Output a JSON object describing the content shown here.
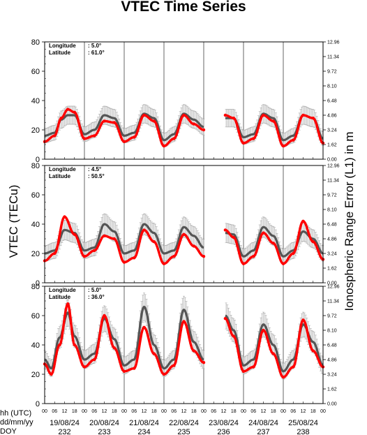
{
  "chart_data": {
    "type": "line",
    "title": "VTEC Time Series",
    "ylabel": "VTEC (TECu)",
    "ylabel_right": "Ionospheric Range Error (L1) in m",
    "ylim": [
      0,
      80
    ],
    "y_ticks": [
      0,
      20,
      40,
      60,
      80
    ],
    "y_right_ticks": [
      "0.00",
      "1.62",
      "3.24",
      "4.86",
      "6.48",
      "8.10",
      "9.72",
      "11.34",
      "12.96"
    ],
    "x_row_labels": [
      "hh (UTC)",
      "dd/mm/yy",
      "DOY"
    ],
    "hour_ticks": [
      "00",
      "06",
      "12",
      "18"
    ],
    "days": [
      {
        "date": "19/08/24",
        "doy": "232"
      },
      {
        "date": "20/08/24",
        "doy": "233"
      },
      {
        "date": "21/08/24",
        "doy": "234"
      },
      {
        "date": "22/08/24",
        "doy": "235"
      },
      {
        "date": "23/08/24",
        "doy": "236"
      },
      {
        "date": "24/08/24",
        "doy": "237"
      },
      {
        "date": "25/08/24",
        "doy": "238"
      }
    ],
    "colors": {
      "measured": "#ff0000",
      "reference": "#555555",
      "error_bar": "#aaaaaa"
    },
    "gap_hours": [
      96,
      109
    ],
    "panels": [
      {
        "longitude_label": "Longitude",
        "longitude_value": ":   5.0°",
        "latitude_label": "Latitude",
        "latitude_value": ": 61.0°",
        "series": [
          {
            "values": [
              [
                0,
                12
              ],
              [
                6,
                16
              ],
              [
                10,
                28
              ],
              [
                14,
                34
              ],
              [
                18,
                32
              ],
              [
                24,
                14
              ],
              [
                30,
                16
              ],
              [
                36,
                26
              ],
              [
                42,
                25
              ],
              [
                48,
                12
              ],
              [
                54,
                15
              ],
              [
                60,
                30
              ],
              [
                66,
                26
              ],
              [
                72,
                9
              ],
              [
                78,
                14
              ],
              [
                84,
                30
              ],
              [
                90,
                24
              ],
              [
                96,
                20
              ],
              [
                109,
                30
              ],
              [
                114,
                28
              ],
              [
                120,
                11
              ],
              [
                126,
                14
              ],
              [
                132,
                30
              ],
              [
                138,
                26
              ],
              [
                144,
                9
              ],
              [
                150,
                13
              ],
              [
                156,
                30
              ],
              [
                162,
                28
              ],
              [
                168,
                11
              ]
            ]
          },
          {
            "values": [
              [
                0,
                16
              ],
              [
                6,
                18
              ],
              [
                10,
                27
              ],
              [
                14,
                30
              ],
              [
                18,
                30
              ],
              [
                24,
                17
              ],
              [
                30,
                20
              ],
              [
                36,
                30
              ],
              [
                42,
                28
              ],
              [
                48,
                16
              ],
              [
                54,
                18
              ],
              [
                60,
                31
              ],
              [
                66,
                28
              ],
              [
                72,
                13
              ],
              [
                78,
                17
              ],
              [
                84,
                31
              ],
              [
                90,
                27
              ],
              [
                96,
                22
              ],
              [
                109,
                28
              ],
              [
                114,
                28
              ],
              [
                120,
                15
              ],
              [
                126,
                17
              ],
              [
                132,
                31
              ],
              [
                138,
                28
              ],
              [
                144,
                13
              ],
              [
                150,
                16
              ],
              [
                156,
                30
              ],
              [
                162,
                28
              ],
              [
                168,
                14
              ]
            ]
          }
        ]
      },
      {
        "longitude_label": "Longitude",
        "longitude_value": ":   4.5°",
        "latitude_label": "Latitude",
        "latitude_value": ": 50.5°",
        "series": [
          {
            "values": [
              [
                0,
                15
              ],
              [
                6,
                20
              ],
              [
                12,
                45
              ],
              [
                18,
                33
              ],
              [
                24,
                18
              ],
              [
                30,
                22
              ],
              [
                36,
                32
              ],
              [
                42,
                30
              ],
              [
                48,
                14
              ],
              [
                54,
                17
              ],
              [
                60,
                36
              ],
              [
                66,
                28
              ],
              [
                72,
                13
              ],
              [
                78,
                18
              ],
              [
                84,
                33
              ],
              [
                90,
                25
              ],
              [
                96,
                18
              ],
              [
                109,
                36
              ],
              [
                114,
                31
              ],
              [
                120,
                13
              ],
              [
                126,
                18
              ],
              [
                132,
                34
              ],
              [
                138,
                27
              ],
              [
                144,
                13
              ],
              [
                150,
                20
              ],
              [
                156,
                42
              ],
              [
                162,
                28
              ],
              [
                168,
                16
              ]
            ]
          },
          {
            "values": [
              [
                0,
                20
              ],
              [
                6,
                22
              ],
              [
                12,
                36
              ],
              [
                18,
                34
              ],
              [
                24,
                22
              ],
              [
                30,
                24
              ],
              [
                36,
                40
              ],
              [
                42,
                35
              ],
              [
                48,
                20
              ],
              [
                54,
                22
              ],
              [
                60,
                40
              ],
              [
                66,
                34
              ],
              [
                72,
                20
              ],
              [
                78,
                22
              ],
              [
                84,
                38
              ],
              [
                90,
                32
              ],
              [
                96,
                24
              ],
              [
                109,
                34
              ],
              [
                114,
                33
              ],
              [
                120,
                18
              ],
              [
                126,
                22
              ],
              [
                132,
                38
              ],
              [
                138,
                32
              ],
              [
                144,
                18
              ],
              [
                150,
                22
              ],
              [
                156,
                35
              ],
              [
                162,
                30
              ],
              [
                168,
                20
              ]
            ]
          }
        ]
      },
      {
        "longitude_label": "Longitude",
        "longitude_value": ":   5.0°",
        "latitude_label": "Latitude",
        "latitude_value": ": 36.0°",
        "series": [
          {
            "values": [
              [
                0,
                27
              ],
              [
                4,
                20
              ],
              [
                9,
                40
              ],
              [
                14,
                68
              ],
              [
                18,
                40
              ],
              [
                24,
                25
              ],
              [
                30,
                30
              ],
              [
                36,
                60
              ],
              [
                42,
                38
              ],
              [
                48,
                22
              ],
              [
                54,
                24
              ],
              [
                60,
                52
              ],
              [
                66,
                34
              ],
              [
                72,
                20
              ],
              [
                78,
                26
              ],
              [
                84,
                56
              ],
              [
                90,
                36
              ],
              [
                96,
                28
              ],
              [
                109,
                58
              ],
              [
                114,
                46
              ],
              [
                120,
                22
              ],
              [
                126,
                25
              ],
              [
                132,
                50
              ],
              [
                138,
                34
              ],
              [
                144,
                18
              ],
              [
                150,
                25
              ],
              [
                156,
                57
              ],
              [
                162,
                36
              ],
              [
                168,
                25
              ]
            ]
          },
          {
            "values": [
              [
                0,
                30
              ],
              [
                4,
                24
              ],
              [
                9,
                45
              ],
              [
                14,
                62
              ],
              [
                18,
                46
              ],
              [
                24,
                30
              ],
              [
                30,
                34
              ],
              [
                36,
                58
              ],
              [
                42,
                44
              ],
              [
                48,
                26
              ],
              [
                54,
                30
              ],
              [
                60,
                66
              ],
              [
                66,
                40
              ],
              [
                72,
                24
              ],
              [
                78,
                30
              ],
              [
                84,
                64
              ],
              [
                90,
                42
              ],
              [
                96,
                30
              ],
              [
                109,
                60
              ],
              [
                114,
                50
              ],
              [
                120,
                26
              ],
              [
                126,
                30
              ],
              [
                132,
                54
              ],
              [
                138,
                40
              ],
              [
                144,
                22
              ],
              [
                150,
                30
              ],
              [
                156,
                54
              ],
              [
                162,
                42
              ],
              [
                168,
                26
              ]
            ]
          }
        ]
      }
    ]
  }
}
